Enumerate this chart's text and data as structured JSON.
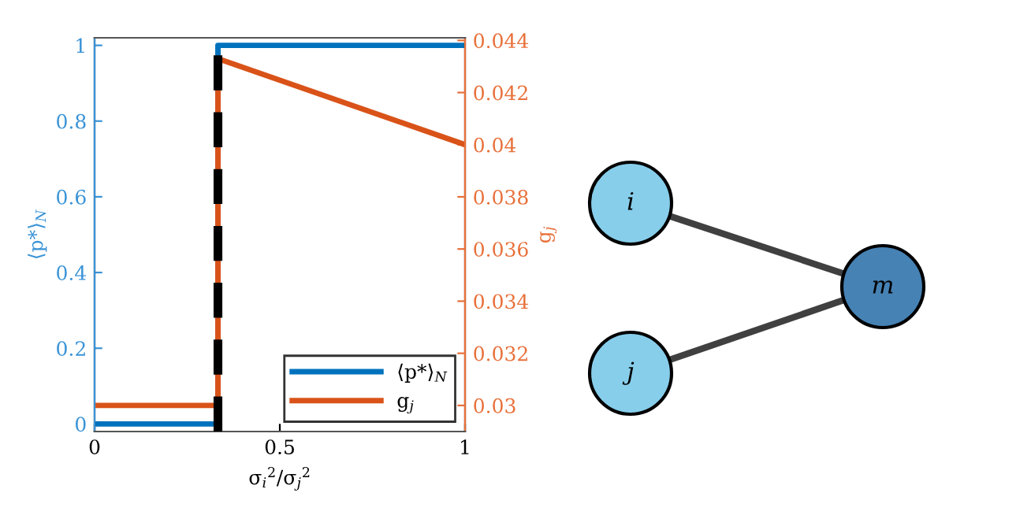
{
  "chart_data": [
    {
      "type": "line",
      "xlabel": "σ$_{i}$$^{2}$/σ$_{j}$$^{2}$",
      "ylabel": "⟨p*⟩$_{N}$",
      "y2label": "g$_{j}$",
      "xlim": [
        0,
        1
      ],
      "xticks": [
        0,
        0.5,
        1
      ],
      "ylim": [
        -0.02,
        1.02
      ],
      "yticks": [
        0,
        0.2,
        0.4,
        0.6,
        0.8,
        1
      ],
      "y2lim": [
        0.029,
        0.0441
      ],
      "y2ticks": [
        0.03,
        0.032,
        0.034,
        0.036,
        0.038,
        0.04,
        0.042,
        0.044
      ],
      "series": [
        {
          "name": "⟨p*⟩$_{N}$",
          "color": "#0072bd",
          "x": [
            0,
            0.333,
            0.333,
            1
          ],
          "values": [
            0,
            0,
            1,
            1
          ]
        },
        {
          "name": "g$_{j}$",
          "color": "#d95319",
          "axis": "y2",
          "x": [
            0,
            0.333,
            0.333,
            1
          ],
          "values": [
            0.03,
            0.03,
            0.0433,
            0.04
          ]
        }
      ],
      "ref_lines": [
        {
          "axis": "x",
          "value": 0.333,
          "color": "#000000",
          "line_style": "dashed"
        }
      ],
      "legend": "bottom right",
      "grid": false
    },
    {
      "type": "other",
      "annotations": [
        "i",
        "j",
        "m"
      ],
      "colors": [
        "#87ceeb",
        "#87ceeb",
        "#4682b4"
      ]
    }
  ]
}
